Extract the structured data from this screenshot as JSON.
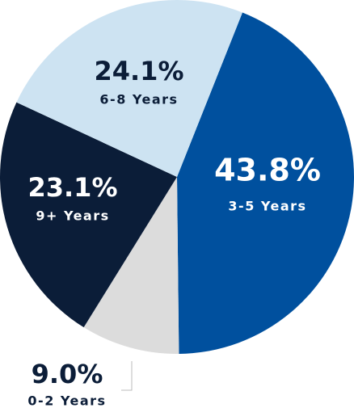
{
  "chart_data": {
    "type": "pie",
    "categories": [
      "3-5 Years",
      "0-2 Years",
      "9+ Years",
      "6-8 Years"
    ],
    "values": [
      43.8,
      9.0,
      23.1,
      24.1
    ],
    "value_labels": [
      "43.8%",
      "9.0%",
      "23.1%",
      "24.1%"
    ],
    "colors": [
      "#00509e",
      "#dcdcdc",
      "#0b1d38",
      "#cde3f2"
    ]
  }
}
